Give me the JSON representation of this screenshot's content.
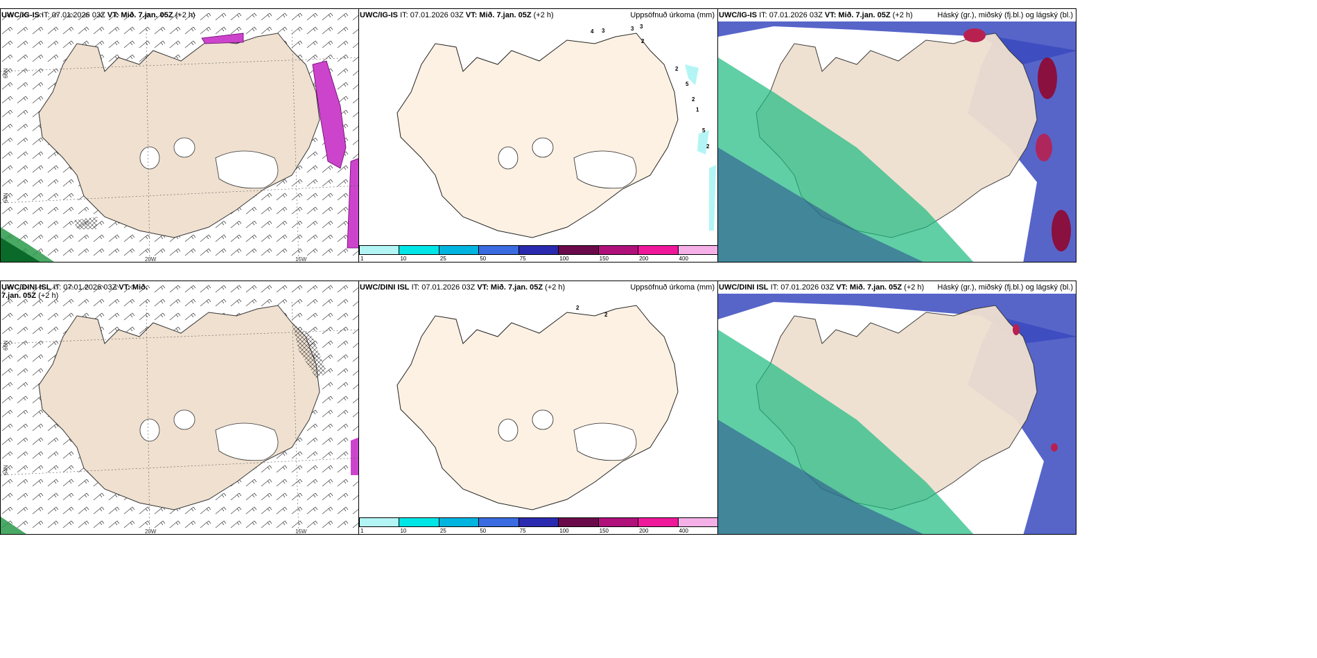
{
  "top": {
    "wind": {
      "model": "UWC/IG-IS",
      "it": "IT: 07.01.2026 03Z",
      "vt": "VT: Mið. 7.jan. 05Z",
      "lead": "(+2 h)"
    },
    "precip": {
      "model": "UWC/IG-IS",
      "it": "IT: 07.01.2026 03Z",
      "vt": "VT: Mið. 7.jan. 05Z",
      "lead": "(+2 h)",
      "title": "Uppsöfnuð úrkoma (mm)"
    },
    "cloud": {
      "model": "UWC/IG-IS",
      "it": "IT: 07.01.2026 03Z",
      "vt": "VT: Mið. 7.jan. 05Z",
      "lead": "(+2 h)",
      "title": "Háský (gr.), miðský (fj.bl.) og lágský (bl.)"
    }
  },
  "bottom": {
    "wind": {
      "model": "UWC/DINI ISL",
      "it": "IT: 07.01.2026 03Z",
      "vt": "VT: Mið. 7.jan. 05Z",
      "lead": "(+2 h)"
    },
    "precip": {
      "model": "UWC/DINI ISL",
      "it": "IT: 07.01.2026 03Z",
      "vt": "VT: Mið. 7.jan. 05Z",
      "lead": "(+2 h)",
      "title": "Uppsöfnuð úrkoma (mm)"
    },
    "cloud": {
      "model": "UWC/DINI ISL",
      "it": "IT: 07.01.2026 03Z",
      "vt": "VT: Mið. 7.jan. 05Z",
      "lead": "(+2 h)",
      "title": "Háský (gr.), miðský (fj.bl.) og lágský (bl.)"
    }
  },
  "axes": {
    "lon_labels": [
      "20W",
      "15W"
    ],
    "lat_labels": [
      "66N",
      "64N"
    ]
  },
  "colorbar": {
    "ticks": [
      "1",
      "10",
      "25",
      "50",
      "75",
      "100",
      "150",
      "200",
      "400"
    ],
    "colors": [
      "#b3f5f5",
      "#00e5e5",
      "#00b4e0",
      "#3a6be0",
      "#2a2ab0",
      "#6a0a4a",
      "#b0107a",
      "#f0189a",
      "#f5b0e8"
    ]
  },
  "precip_labels_top": [
    "4",
    "3",
    "3",
    "3",
    "2",
    "2",
    "5",
    "2",
    "1",
    "5",
    "2"
  ],
  "precip_labels_bottom": [
    "2",
    "2"
  ],
  "colors": {
    "land_wind": "#efe0d0",
    "land_precip": "#fdf1e3",
    "precip_magenta": "#d050d0",
    "cloud_high": "#1dbb80",
    "cloud_mid": "#2a4ab8",
    "cloud_low": "#8a1040"
  }
}
